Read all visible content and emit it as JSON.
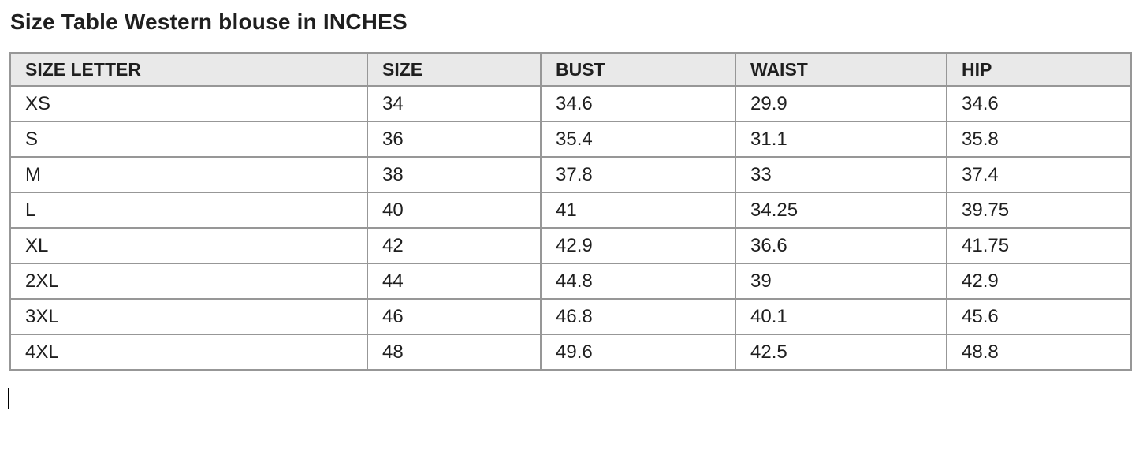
{
  "title": "Size Table Western blouse in INCHES",
  "table": {
    "headers": [
      "SIZE LETTER",
      "SIZE",
      "BUST",
      "WAIST",
      "HIP"
    ],
    "rows": [
      [
        "XS",
        "34",
        "34.6",
        "29.9",
        "34.6"
      ],
      [
        "S",
        "36",
        "35.4",
        "31.1",
        "35.8"
      ],
      [
        "M",
        "38",
        "37.8",
        "33",
        "37.4"
      ],
      [
        "L",
        "40",
        "41",
        "34.25",
        "39.75"
      ],
      [
        "XL",
        "42",
        "42.9",
        "36.6",
        "41.75"
      ],
      [
        "2XL",
        "44",
        "44.8",
        "39",
        "42.9"
      ],
      [
        "3XL",
        "46",
        "46.8",
        "40.1",
        "45.6"
      ],
      [
        "4XL",
        "48",
        "49.6",
        "42.5",
        "48.8"
      ]
    ]
  },
  "colors": {
    "header_bg": "#e9e9e9",
    "table_border": "#979797",
    "text": "#1f1f1f",
    "cursor": "#000000"
  }
}
